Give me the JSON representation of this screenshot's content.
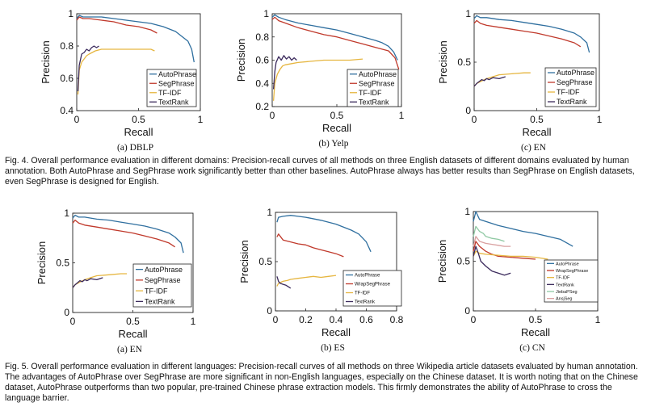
{
  "colors": {
    "AutoPhrase": "#2f6f9f",
    "SegPhrase": "#c0392b",
    "TF-IDF": "#e6b640",
    "TextRank": "#3b2a5c",
    "JiebaPSeg": "#8fc9a3",
    "AnsjSeg": "#d9a0a0",
    "frame": "#222222"
  },
  "fig4": {
    "caption": "Fig. 4. Overall performance evaluation in different domains: Precision-recall curves of all methods on three English datasets of different domains evaluated by human annotation. Both AutoPhrase and SegPhrase work significantly better than other baselines. AutoPhrase always has better results than SegPhrase on English datasets, even SegPhrase is designed for English."
  },
  "fig5": {
    "caption": "Fig. 5. Overall performance evaluation in different languages: Precision-recall curves of all methods on three Wikipedia article datasets evaluated by human annotation. The advantages of AutoPhrase over SegPhrase are more significant in non-English languages, especially on the Chinese dataset. It is worth noting that on the Chinese dataset, AutoPhrase outperforms than two popular, pre-trained Chinese phrase extraction models. This firmly demonstrates the ability of AutoPhrase to cross the language barrier."
  },
  "chart_data": [
    {
      "type": "line",
      "id": "f4a",
      "sublabel": "(a)  DBLP",
      "xlabel": "Recall",
      "ylabel": "Precision",
      "xlim": [
        0,
        1
      ],
      "ylim": [
        0.4,
        1
      ],
      "xticks": [
        0,
        0.5,
        1
      ],
      "xtick_labels": [
        "0",
        "0.5",
        "1"
      ],
      "yticks": [
        0.4,
        0.6,
        0.8,
        1
      ],
      "ytick_labels": [
        "0.4",
        "0.6",
        "0.8",
        "1"
      ],
      "legend": [
        "AutoPhrase",
        "SegPhrase",
        "TF-IDF",
        "TextRank"
      ],
      "series": [
        {
          "name": "AutoPhrase",
          "x": [
            0,
            0.02,
            0.05,
            0.1,
            0.2,
            0.3,
            0.4,
            0.5,
            0.6,
            0.7,
            0.8,
            0.85,
            0.9,
            0.93,
            0.95
          ],
          "y": [
            0.97,
            0.99,
            0.98,
            0.98,
            0.98,
            0.97,
            0.96,
            0.95,
            0.94,
            0.92,
            0.89,
            0.86,
            0.83,
            0.78,
            0.7
          ]
        },
        {
          "name": "SegPhrase",
          "x": [
            0,
            0.02,
            0.05,
            0.1,
            0.2,
            0.3,
            0.4,
            0.5,
            0.6,
            0.65
          ],
          "y": [
            0.96,
            0.98,
            0.97,
            0.97,
            0.96,
            0.95,
            0.93,
            0.92,
            0.9,
            0.88
          ]
        },
        {
          "name": "TF-IDF",
          "x": [
            0.01,
            0.02,
            0.04,
            0.06,
            0.08,
            0.1,
            0.15,
            0.2,
            0.3,
            0.4,
            0.5,
            0.6,
            0.63
          ],
          "y": [
            0.5,
            0.65,
            0.7,
            0.72,
            0.74,
            0.75,
            0.77,
            0.78,
            0.78,
            0.78,
            0.78,
            0.78,
            0.77
          ]
        },
        {
          "name": "TextRank",
          "x": [
            0.01,
            0.02,
            0.04,
            0.06,
            0.08,
            0.1,
            0.12,
            0.14,
            0.16,
            0.18
          ],
          "y": [
            0.52,
            0.68,
            0.75,
            0.76,
            0.78,
            0.77,
            0.79,
            0.8,
            0.79,
            0.8
          ]
        }
      ]
    },
    {
      "type": "line",
      "id": "f4b",
      "sublabel": "(b)  Yelp",
      "xlabel": "Recall",
      "ylabel": "Precision",
      "xlim": [
        0,
        1
      ],
      "ylim": [
        0.2,
        1
      ],
      "xticks": [
        0,
        0.5,
        1
      ],
      "xtick_labels": [
        "0",
        "0.5",
        "1"
      ],
      "yticks": [
        0.2,
        0.4,
        0.6,
        0.8,
        1
      ],
      "ytick_labels": [
        "0.2",
        "0.4",
        "0.6",
        "0.8",
        "1"
      ],
      "legend": [
        "AutoPhrase",
        "SegPhrase",
        "TF-IDF",
        "TextRank"
      ],
      "series": [
        {
          "name": "AutoPhrase",
          "x": [
            0,
            0.02,
            0.05,
            0.1,
            0.2,
            0.3,
            0.4,
            0.5,
            0.6,
            0.7,
            0.8,
            0.85,
            0.9,
            0.94,
            0.97
          ],
          "y": [
            0.97,
            0.99,
            0.97,
            0.95,
            0.92,
            0.9,
            0.88,
            0.86,
            0.83,
            0.8,
            0.77,
            0.75,
            0.72,
            0.67,
            0.6
          ]
        },
        {
          "name": "SegPhrase",
          "x": [
            0,
            0.02,
            0.05,
            0.1,
            0.2,
            0.3,
            0.4,
            0.5,
            0.6,
            0.7,
            0.8,
            0.9,
            0.95,
            0.98
          ],
          "y": [
            0.95,
            0.97,
            0.94,
            0.92,
            0.88,
            0.85,
            0.82,
            0.8,
            0.77,
            0.74,
            0.71,
            0.68,
            0.62,
            0.52
          ]
        },
        {
          "name": "TF-IDF",
          "x": [
            0.01,
            0.02,
            0.04,
            0.06,
            0.08,
            0.1,
            0.15,
            0.2,
            0.3,
            0.4,
            0.5,
            0.6,
            0.7
          ],
          "y": [
            0.25,
            0.4,
            0.48,
            0.52,
            0.55,
            0.56,
            0.57,
            0.58,
            0.59,
            0.6,
            0.6,
            0.6,
            0.61
          ]
        },
        {
          "name": "TextRank",
          "x": [
            0.01,
            0.02,
            0.03,
            0.05,
            0.07,
            0.09,
            0.11,
            0.13,
            0.15,
            0.17,
            0.19
          ],
          "y": [
            0.35,
            0.5,
            0.58,
            0.63,
            0.6,
            0.64,
            0.61,
            0.63,
            0.6,
            0.62,
            0.6
          ]
        }
      ]
    },
    {
      "type": "line",
      "id": "f4c",
      "sublabel": "(c)  EN",
      "xlabel": "Recall",
      "ylabel": "Precision",
      "xlim": [
        0,
        1
      ],
      "ylim": [
        0,
        1
      ],
      "xticks": [
        0,
        0.5,
        1
      ],
      "xtick_labels": [
        "0",
        "0.5",
        "1"
      ],
      "yticks": [
        0,
        0.5,
        1
      ],
      "ytick_labels": [
        "0",
        "0.5",
        "1"
      ],
      "legend": [
        "AutoPhrase",
        "SegPhrase",
        "TF-IDF",
        "TextRank"
      ],
      "series": [
        {
          "name": "AutoPhrase",
          "x": [
            0,
            0.02,
            0.05,
            0.1,
            0.2,
            0.3,
            0.4,
            0.5,
            0.6,
            0.7,
            0.8,
            0.85,
            0.9,
            0.92
          ],
          "y": [
            0.95,
            0.98,
            0.96,
            0.96,
            0.94,
            0.93,
            0.91,
            0.89,
            0.87,
            0.84,
            0.8,
            0.76,
            0.7,
            0.6
          ]
        },
        {
          "name": "SegPhrase",
          "x": [
            0,
            0.02,
            0.05,
            0.1,
            0.2,
            0.3,
            0.4,
            0.5,
            0.6,
            0.7,
            0.8,
            0.85
          ],
          "y": [
            0.9,
            0.93,
            0.9,
            0.88,
            0.86,
            0.84,
            0.82,
            0.8,
            0.77,
            0.74,
            0.7,
            0.66
          ]
        },
        {
          "name": "TF-IDF",
          "x": [
            0,
            0.02,
            0.05,
            0.1,
            0.15,
            0.2,
            0.3,
            0.4,
            0.45
          ],
          "y": [
            0.25,
            0.28,
            0.3,
            0.33,
            0.35,
            0.37,
            0.38,
            0.39,
            0.39
          ]
        },
        {
          "name": "TextRank",
          "x": [
            0,
            0.02,
            0.04,
            0.06,
            0.08,
            0.1,
            0.12,
            0.15,
            0.2,
            0.25
          ],
          "y": [
            0.25,
            0.28,
            0.3,
            0.32,
            0.31,
            0.33,
            0.32,
            0.34,
            0.33,
            0.35
          ]
        }
      ]
    },
    {
      "type": "line",
      "id": "f5a",
      "sublabel": "(a)  EN",
      "xlabel": "Recall",
      "ylabel": "Precision",
      "xlim": [
        0,
        1
      ],
      "ylim": [
        0,
        1
      ],
      "xticks": [
        0,
        0.5,
        1
      ],
      "xtick_labels": [
        "0",
        "0.5",
        "1"
      ],
      "yticks": [
        0,
        0.5,
        1
      ],
      "ytick_labels": [
        "0",
        "0.5",
        "1"
      ],
      "legend": [
        "AutoPhrase",
        "SegPhrase",
        "TF-IDF",
        "TextRank"
      ],
      "series": [
        {
          "name": "AutoPhrase",
          "x": [
            0,
            0.02,
            0.05,
            0.1,
            0.2,
            0.3,
            0.4,
            0.5,
            0.6,
            0.7,
            0.8,
            0.85,
            0.9,
            0.92
          ],
          "y": [
            0.95,
            0.98,
            0.96,
            0.96,
            0.94,
            0.93,
            0.91,
            0.89,
            0.87,
            0.84,
            0.8,
            0.76,
            0.7,
            0.6
          ]
        },
        {
          "name": "SegPhrase",
          "x": [
            0,
            0.02,
            0.05,
            0.1,
            0.2,
            0.3,
            0.4,
            0.5,
            0.6,
            0.7,
            0.8,
            0.85
          ],
          "y": [
            0.9,
            0.93,
            0.9,
            0.88,
            0.86,
            0.84,
            0.82,
            0.8,
            0.77,
            0.74,
            0.7,
            0.66
          ]
        },
        {
          "name": "TF-IDF",
          "x": [
            0,
            0.02,
            0.05,
            0.1,
            0.15,
            0.2,
            0.3,
            0.4,
            0.45
          ],
          "y": [
            0.25,
            0.28,
            0.3,
            0.33,
            0.35,
            0.37,
            0.38,
            0.39,
            0.39
          ]
        },
        {
          "name": "TextRank",
          "x": [
            0,
            0.02,
            0.04,
            0.06,
            0.08,
            0.1,
            0.12,
            0.15,
            0.2,
            0.25
          ],
          "y": [
            0.25,
            0.28,
            0.3,
            0.32,
            0.31,
            0.33,
            0.32,
            0.34,
            0.33,
            0.35
          ]
        }
      ]
    },
    {
      "type": "line",
      "id": "f5b",
      "sublabel": "(b)  ES",
      "xlabel": "Recall",
      "ylabel": "Precision",
      "xlim": [
        0,
        0.8
      ],
      "ylim": [
        0,
        1
      ],
      "xticks": [
        0,
        0.2,
        0.4,
        0.6,
        0.8
      ],
      "xtick_labels": [
        "0",
        "0.2",
        "0.4",
        "0.6",
        "0.8"
      ],
      "yticks": [
        0,
        0.5,
        1
      ],
      "ytick_labels": [
        "0",
        "0.5",
        "1"
      ],
      "legend": [
        "AutoPhrase",
        "WrapSegPhrase",
        "TF-IDF",
        "TextRank"
      ],
      "series": [
        {
          "name": "AutoPhrase",
          "x": [
            0.01,
            0.02,
            0.05,
            0.1,
            0.15,
            0.2,
            0.3,
            0.4,
            0.5,
            0.55,
            0.6,
            0.63
          ],
          "y": [
            0.9,
            0.95,
            0.96,
            0.97,
            0.96,
            0.95,
            0.92,
            0.88,
            0.82,
            0.78,
            0.7,
            0.6
          ]
        },
        {
          "name": "WrapSegPhrase",
          "x": [
            0.01,
            0.02,
            0.05,
            0.1,
            0.15,
            0.2,
            0.25,
            0.3,
            0.35,
            0.4,
            0.45
          ],
          "y": [
            0.75,
            0.78,
            0.72,
            0.7,
            0.68,
            0.67,
            0.64,
            0.62,
            0.6,
            0.58,
            0.55
          ]
        },
        {
          "name": "TF-IDF",
          "x": [
            0.01,
            0.02,
            0.05,
            0.08,
            0.1,
            0.15,
            0.2,
            0.25,
            0.3,
            0.35,
            0.4
          ],
          "y": [
            0.25,
            0.28,
            0.3,
            0.31,
            0.32,
            0.33,
            0.34,
            0.35,
            0.34,
            0.35,
            0.36
          ]
        },
        {
          "name": "TextRank",
          "x": [
            0.01,
            0.02,
            0.03,
            0.05,
            0.07,
            0.09,
            0.1
          ],
          "y": [
            0.35,
            0.3,
            0.28,
            0.27,
            0.26,
            0.24,
            0.23
          ]
        }
      ]
    },
    {
      "type": "line",
      "id": "f5c",
      "sublabel": "(c)  CN",
      "xlabel": "Recall",
      "ylabel": "Precision",
      "xlim": [
        0,
        1
      ],
      "ylim": [
        0,
        1
      ],
      "xticks": [
        0,
        0.5,
        1
      ],
      "xtick_labels": [
        "0",
        "0.5",
        "1"
      ],
      "yticks": [
        0,
        0.5,
        1
      ],
      "ytick_labels": [
        "0",
        "0.5",
        "1"
      ],
      "legend": [
        "AutoPhrase",
        "WrapSegPhrase",
        "TF-IDF",
        "TextRank",
        "JiebaPSeg",
        "AnsjSeg"
      ],
      "series": [
        {
          "name": "AutoPhrase",
          "x": [
            0,
            0.02,
            0.05,
            0.1,
            0.2,
            0.3,
            0.4,
            0.5,
            0.6,
            0.7,
            0.8
          ],
          "y": [
            0.9,
            1.0,
            0.92,
            0.9,
            0.86,
            0.83,
            0.8,
            0.78,
            0.75,
            0.72,
            0.65
          ]
        },
        {
          "name": "WrapSegPhrase",
          "x": [
            0,
            0.02,
            0.05,
            0.1,
            0.15,
            0.2,
            0.3,
            0.4,
            0.5
          ],
          "y": [
            0.6,
            0.7,
            0.65,
            0.6,
            0.57,
            0.55,
            0.54,
            0.53,
            0.52
          ]
        },
        {
          "name": "TF-IDF",
          "x": [
            0,
            0.02,
            0.05,
            0.1,
            0.2,
            0.3,
            0.4,
            0.5,
            0.6
          ],
          "y": [
            0.55,
            0.6,
            0.58,
            0.57,
            0.56,
            0.55,
            0.55,
            0.54,
            0.52
          ]
        },
        {
          "name": "TextRank",
          "x": [
            0,
            0.02,
            0.04,
            0.06,
            0.1,
            0.15,
            0.2,
            0.25,
            0.3
          ],
          "y": [
            0.55,
            0.65,
            0.58,
            0.5,
            0.45,
            0.4,
            0.38,
            0.36,
            0.38
          ]
        },
        {
          "name": "JiebaPSeg",
          "x": [
            0,
            0.02,
            0.05,
            0.08,
            0.1,
            0.15,
            0.2,
            0.25
          ],
          "y": [
            0.75,
            0.85,
            0.8,
            0.78,
            0.75,
            0.73,
            0.72,
            0.7
          ]
        },
        {
          "name": "AnsjSeg",
          "x": [
            0,
            0.02,
            0.05,
            0.1,
            0.15,
            0.2,
            0.25,
            0.3
          ],
          "y": [
            0.65,
            0.75,
            0.7,
            0.68,
            0.67,
            0.66,
            0.65,
            0.65
          ]
        }
      ]
    }
  ]
}
